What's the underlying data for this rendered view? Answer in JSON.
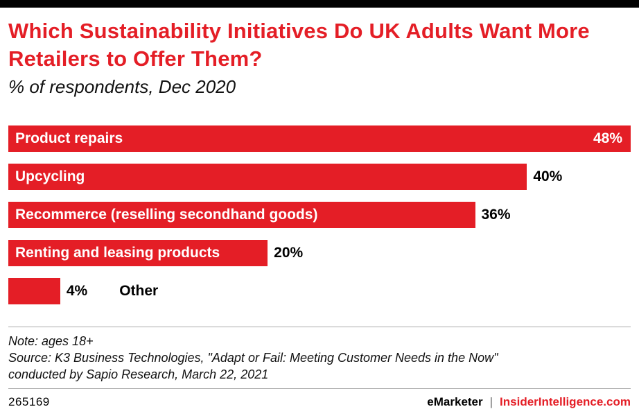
{
  "header": {
    "title": "Which Sustainability Initiatives Do UK Adults Want More Retailers to Offer Them?",
    "subtitle": "% of respondents, Dec 2020"
  },
  "chart_data": {
    "type": "bar",
    "orientation": "horizontal",
    "title": "Which Sustainability Initiatives Do UK Adults Want More Retailers to Offer Them?",
    "subtitle": "% of respondents, Dec 2020",
    "categories": [
      "Product repairs",
      "Upcycling",
      "Recommerce (reselling secondhand goods)",
      "Renting and leasing products",
      "Other"
    ],
    "values": [
      48,
      40,
      36,
      20,
      4
    ],
    "value_labels": [
      "48%",
      "40%",
      "36%",
      "20%",
      "4%"
    ],
    "xlim": [
      0,
      48
    ],
    "grid": false,
    "legend": "none",
    "bar_color": "#e41e26",
    "label_color_inside": "#ffffff",
    "label_color_outside": "#000000"
  },
  "notes": {
    "note_line": "Note: ages 18+",
    "source_line1": "Source: K3 Business Technologies, \"Adapt or Fail: Meeting Customer Needs in the Now\"",
    "source_line2": "conducted by Sapio Research, March 22, 2021"
  },
  "footer": {
    "chart_id": "265169",
    "brand": "eMarketer",
    "separator": "|",
    "site": "InsiderIntelligence.com"
  },
  "colors": {
    "accent_red": "#e41e26",
    "top_bar": "#000000",
    "rule_gray": "#a9a9a9"
  }
}
